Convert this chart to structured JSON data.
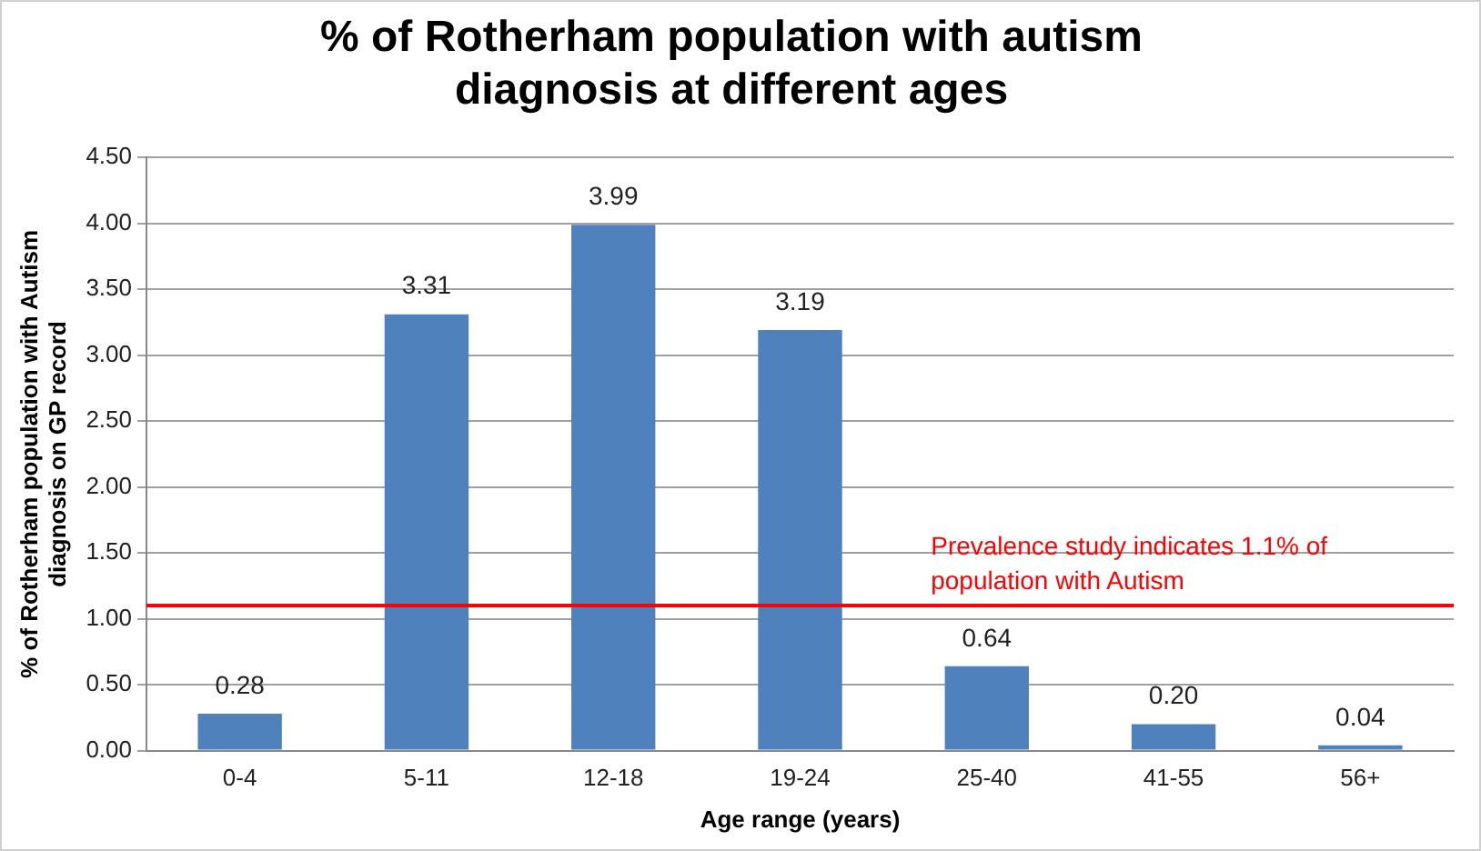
{
  "chart_data": {
    "type": "bar",
    "title": "% of Rotherham population with autism diagnosis at different ages",
    "xlabel": "Age range (years)",
    "ylabel": "% of Rotherham population with Autism diagnosis on GP record",
    "categories": [
      "0-4",
      "5-11",
      "12-18",
      "19-24",
      "25-40",
      "41-55",
      "56+"
    ],
    "values": [
      0.28,
      3.31,
      3.99,
      3.19,
      0.64,
      0.2,
      0.04
    ],
    "value_labels": [
      "0.28",
      "3.31",
      "3.99",
      "3.19",
      "0.64",
      "0.20",
      "0.04"
    ],
    "color": "#4f81bd",
    "ylim": [
      0,
      4.5
    ],
    "yticks": [
      {
        "value": 0,
        "label": "0.00"
      },
      {
        "value": 0.5,
        "label": "0.50"
      },
      {
        "value": 1,
        "label": "1.00"
      },
      {
        "value": 1.5,
        "label": "1.50"
      },
      {
        "value": 2,
        "label": "2.00"
      },
      {
        "value": 2.5,
        "label": "2.50"
      },
      {
        "value": 3,
        "label": "3.00"
      },
      {
        "value": 3.5,
        "label": "3.50"
      },
      {
        "value": 4,
        "label": "4.00"
      },
      {
        "value": 4.5,
        "label": "4.50"
      }
    ],
    "grid": "y",
    "legend": false,
    "ref_lines": [
      {
        "axis": "y",
        "value": 1.1,
        "label": "Prevalence study indicates 1.1% of population with Autism",
        "color": "#ff0000"
      }
    ]
  }
}
